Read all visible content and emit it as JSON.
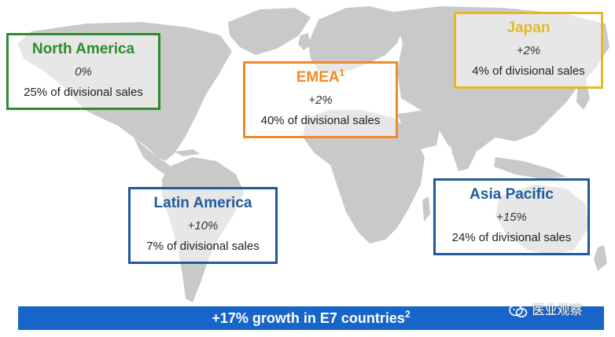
{
  "regions": {
    "north_america": {
      "title": "North America",
      "growth": "0%",
      "share": "25% of divisional sales",
      "color": "#2e8b2e"
    },
    "emea": {
      "title": "EMEA",
      "footnote": "1",
      "growth": "+2%",
      "share": "40% of divisional sales",
      "color": "#f08a24"
    },
    "japan": {
      "title": "Japan",
      "growth": "+2%",
      "share": "4% of divisional sales",
      "color": "#e3b92a"
    },
    "latin_america": {
      "title": "Latin America",
      "growth": "+10%",
      "share": "7% of divisional sales",
      "color": "#1f5b9e"
    },
    "asia_pacific": {
      "title": "Asia Pacific",
      "growth": "+15%",
      "share": "24% of divisional sales",
      "color": "#1f5b9e"
    }
  },
  "banner": {
    "text": "+17% growth in E7 countries",
    "footnote": "2",
    "color": "#1765c8"
  },
  "watermark": {
    "icon": "wechat-icon",
    "text": "医业观察"
  },
  "map": {
    "land_color": "#c9c9c9"
  }
}
